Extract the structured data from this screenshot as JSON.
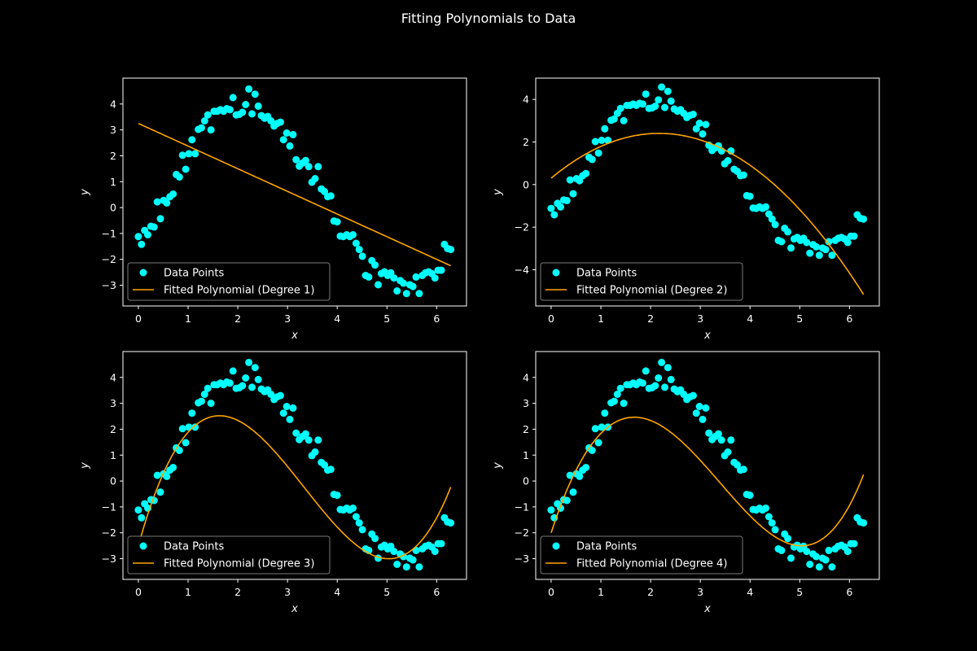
{
  "figure": {
    "title": "Fitting Polynomials to Data",
    "background": "#000000",
    "point_color": "#00ffff",
    "line_color": "#ffa500"
  },
  "data_points": {
    "x": [
      0.0,
      0.063,
      0.127,
      0.19,
      0.254,
      0.317,
      0.381,
      0.444,
      0.508,
      0.571,
      0.635,
      0.698,
      0.762,
      0.825,
      0.889,
      0.952,
      1.016,
      1.079,
      1.142,
      1.206,
      1.269,
      1.333,
      1.396,
      1.46,
      1.523,
      1.587,
      1.65,
      1.714,
      1.777,
      1.841,
      1.904,
      1.967,
      2.031,
      2.094,
      2.158,
      2.221,
      2.285,
      2.348,
      2.412,
      2.475,
      2.539,
      2.602,
      2.666,
      2.729,
      2.792,
      2.856,
      2.919,
      2.983,
      3.046,
      3.11,
      3.173,
      3.237,
      3.3,
      3.364,
      3.427,
      3.49,
      3.554,
      3.617,
      3.681,
      3.744,
      3.808,
      3.871,
      3.935,
      3.998,
      4.062,
      4.125,
      4.189,
      4.252,
      4.315,
      4.379,
      4.442,
      4.506,
      4.569,
      4.633,
      4.696,
      4.76,
      4.823,
      4.887,
      4.95,
      5.014,
      5.077,
      5.14,
      5.204,
      5.267,
      5.331,
      5.394,
      5.458,
      5.521,
      5.585,
      5.648,
      5.712,
      5.775,
      5.839,
      5.902,
      5.965,
      6.029,
      6.092,
      6.156,
      6.219,
      6.283
    ],
    "y": [
      -1.12,
      -1.42,
      -0.88,
      -1.05,
      -0.72,
      -0.75,
      0.22,
      -0.43,
      0.28,
      0.18,
      0.42,
      0.52,
      1.28,
      1.18,
      2.02,
      1.48,
      2.08,
      2.62,
      2.08,
      3.02,
      3.08,
      3.35,
      3.58,
      3.0,
      3.72,
      3.72,
      3.78,
      3.72,
      3.82,
      3.78,
      4.25,
      3.58,
      3.6,
      3.68,
      3.98,
      4.58,
      3.62,
      4.38,
      3.92,
      3.55,
      3.45,
      3.52,
      3.35,
      3.15,
      3.25,
      3.3,
      2.62,
      2.88,
      2.38,
      2.82,
      1.85,
      1.6,
      1.72,
      1.82,
      1.58,
      0.98,
      1.12,
      1.58,
      0.72,
      0.62,
      0.42,
      0.45,
      -0.52,
      -0.55,
      -1.1,
      -1.12,
      -1.05,
      -1.12,
      -1.05,
      -1.38,
      -1.62,
      -1.88,
      -2.62,
      -2.68,
      -2.05,
      -2.22,
      -2.98,
      -2.55,
      -2.48,
      -2.62,
      -2.52,
      -2.72,
      -3.22,
      -2.82,
      -2.92,
      -3.32,
      -2.98,
      -3.05,
      -2.68,
      -3.32,
      -2.62,
      -2.52,
      -2.48,
      -2.55,
      -2.72,
      -2.42,
      -2.42,
      -1.42,
      -1.58,
      -1.62
    ]
  },
  "subplots": [
    {
      "legend_points": "Data Points",
      "legend_line": "Fitted Polynomial (Degree 1)",
      "xlabel": "x",
      "ylabel": "y",
      "yticks": [
        -3,
        -2,
        -1,
        0,
        1,
        2,
        3,
        4
      ],
      "ylim": [
        -3.8,
        5.0
      ]
    },
    {
      "legend_points": "Data Points",
      "legend_line": "Fitted Polynomial (Degree 2)",
      "xlabel": "x",
      "ylabel": "y",
      "yticks": [
        -4,
        -2,
        0,
        2,
        4
      ],
      "ylim": [
        -5.7,
        5.0
      ]
    },
    {
      "legend_points": "Data Points",
      "legend_line": "Fitted Polynomial (Degree 3)",
      "xlabel": "x",
      "ylabel": "y",
      "yticks": [
        -3,
        -2,
        -1,
        0,
        1,
        2,
        3,
        4
      ],
      "ylim": [
        -3.8,
        5.0
      ]
    },
    {
      "legend_points": "Data Points",
      "legend_line": "Fitted Polynomial (Degree 4)",
      "xlabel": "x",
      "ylabel": "y",
      "yticks": [
        -3,
        -2,
        -1,
        0,
        1,
        2,
        3,
        4
      ],
      "ylim": [
        -3.8,
        5.0
      ]
    }
  ],
  "chart_data": [
    {
      "type": "scatter+line",
      "fit_degree": 1,
      "fit_coefficients": [
        3.25,
        -0.875
      ],
      "xticks": [
        0,
        1,
        2,
        3,
        4,
        5,
        6
      ],
      "xlim": [
        -0.31,
        6.6
      ],
      "ylim": [
        -3.8,
        5.0
      ]
    },
    {
      "type": "scatter+line",
      "fit_degree": 2,
      "fit_coefficients": [
        0.3,
        1.94,
        -0.447
      ],
      "xticks": [
        0,
        1,
        2,
        3,
        4,
        5,
        6
      ],
      "xlim": [
        -0.31,
        6.6
      ],
      "ylim": [
        -5.7,
        5.0
      ]
    },
    {
      "type": "scatter+line",
      "fit_degree": 3,
      "fit_coefficients": [
        -2.5,
        6.9,
        -2.8,
        0.28
      ],
      "xticks": [
        0,
        1,
        2,
        3,
        4,
        5,
        6
      ],
      "xlim": [
        -0.31,
        6.6
      ],
      "ylim": [
        -3.8,
        5.0
      ]
    },
    {
      "type": "scatter+line",
      "fit_degree": 4,
      "fit_coefficients": [
        -2.0,
        5.9,
        -2.25,
        0.18,
        0.006
      ],
      "xticks": [
        0,
        1,
        2,
        3,
        4,
        5,
        6
      ],
      "xlim": [
        -0.31,
        6.6
      ],
      "ylim": [
        -3.8,
        5.0
      ]
    }
  ]
}
